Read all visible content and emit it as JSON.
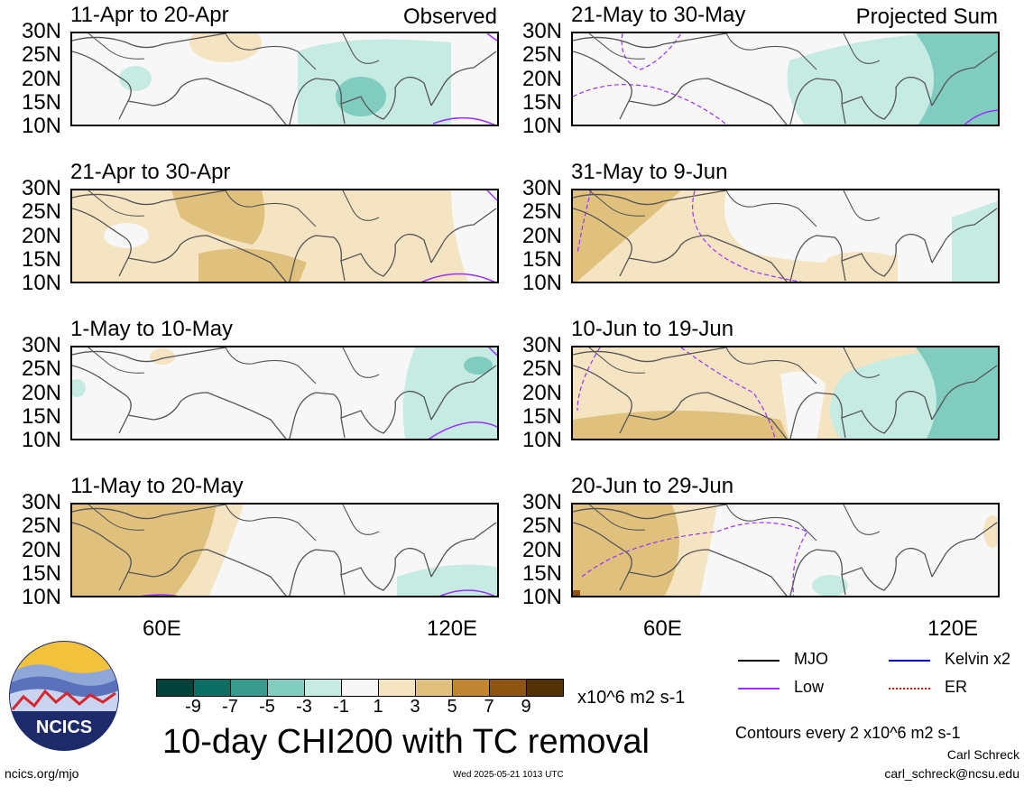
{
  "panels": [
    {
      "title": "11-Apr to 20-Apr",
      "tag": "Observed",
      "column": "left",
      "row": 0
    },
    {
      "title": "21-Apr to 30-Apr",
      "tag": "",
      "column": "left",
      "row": 1
    },
    {
      "title": "1-May to 10-May",
      "tag": "",
      "column": "left",
      "row": 2
    },
    {
      "title": "11-May to 20-May",
      "tag": "",
      "column": "left",
      "row": 3
    },
    {
      "title": "21-May to 30-May",
      "tag": "Projected Sum",
      "column": "right",
      "row": 0
    },
    {
      "title": "31-May to 9-Jun",
      "tag": "",
      "column": "right",
      "row": 1
    },
    {
      "title": "10-Jun to 19-Jun",
      "tag": "",
      "column": "right",
      "row": 2
    },
    {
      "title": "20-Jun to 29-Jun",
      "tag": "",
      "column": "right",
      "row": 3
    }
  ],
  "lat_labels": [
    "30N",
    "25N",
    "20N",
    "15N",
    "10N"
  ],
  "lon_labels": [
    "60E",
    "120E"
  ],
  "colorbar": {
    "ticks": [
      "-9",
      "-7",
      "-5",
      "-3",
      "-1",
      "1",
      "3",
      "5",
      "7",
      "9"
    ],
    "colors": [
      "#01413a",
      "#0c6f63",
      "#3b9a8e",
      "#80ccbf",
      "#c6ebe2",
      "#f7f7f7",
      "#f5e4c1",
      "#dfc07c",
      "#c08634",
      "#8e5512",
      "#533107"
    ],
    "units": "x10^6 m2 s-1"
  },
  "main_title": "10-day CHI200 with TC removal",
  "legend": {
    "items": [
      {
        "label": "MJO",
        "color": "#000000",
        "style": "solid"
      },
      {
        "label": "Kelvin x2",
        "color": "#0000ff",
        "style": "solid"
      },
      {
        "label": "Low",
        "color": "#9b30ff",
        "style": "solid"
      },
      {
        "label": "ER",
        "color": "#ff0000",
        "style": "dotted"
      }
    ],
    "contours_note": "Contours every 2 x10^6 m2 s-1"
  },
  "footer": {
    "site": "ncics.org/mjo",
    "timestamp": "Wed 2025-05-21 1013 UTC",
    "author": "Carl Schreck",
    "email": "carl_schreck@ncsu.edu"
  },
  "logo": {
    "text": "NCICS"
  }
}
